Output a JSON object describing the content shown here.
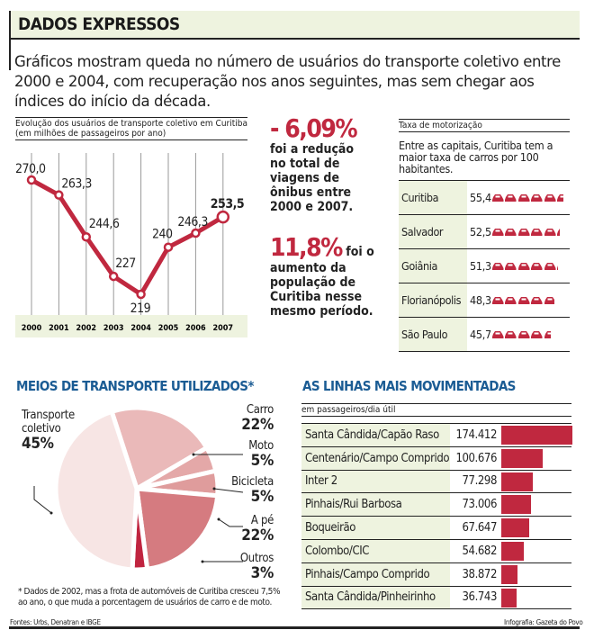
{
  "header": {
    "title": "DADOS EXPRESSOS"
  },
  "intro": "Gráficos mostram queda no número de usuários do transporte coletivo entre 2000 e 2004, com recuperação nos anos seguintes, mas sem chegar aos índices do início da década.",
  "stats": [
    {
      "value": "- 6,09%",
      "text": "foi a redução no total de viagens de ônibus entre 2000 e 2007."
    },
    {
      "value": "11,8%",
      "text": "foi o aumento da população de Curitiba nesse mesmo período."
    }
  ],
  "motorizacao": {
    "title": "Taxa de motorização",
    "desc": "Entre as capitais, Curitiba tem a maior taxa de carros por 100 habitantes.",
    "car_color": "#c0283f",
    "rows": [
      {
        "city": "Curitiba",
        "value": "55,4",
        "num": 55.4
      },
      {
        "city": "Salvador",
        "value": "52,5",
        "num": 52.5
      },
      {
        "city": "Goiânia",
        "value": "51,3",
        "num": 51.3
      },
      {
        "city": "Florianópolis",
        "value": "48,3",
        "num": 48.3
      },
      {
        "city": "São Paulo",
        "value": "45,7",
        "num": 45.7
      }
    ]
  },
  "chart_data": [
    {
      "type": "line",
      "title": "Evolução dos usuários de transporte coletivo em Curitiba (em milhões de passageiros por ano)",
      "categories": [
        "2000",
        "2001",
        "2002",
        "2003",
        "2004",
        "2005",
        "2006",
        "2007"
      ],
      "values": [
        270.0,
        263.3,
        244.6,
        227,
        219,
        240,
        246.3,
        253.5
      ],
      "labels": [
        "270,0",
        "263,3",
        "244,6",
        "227",
        "219",
        "240",
        "246,3",
        "253,5"
      ],
      "color": "#c0283f",
      "grid": true
    },
    {
      "type": "pie",
      "title": "MEIOS DE TRANSPORTE UTILIZADOS*",
      "slices": [
        {
          "name": "Carro",
          "label": "22%",
          "value": 22,
          "color": "#eab9b9"
        },
        {
          "name": "Moto",
          "label": "5%",
          "value": 5,
          "color": "#e4a8a8"
        },
        {
          "name": "Bicicleta",
          "label": "5%",
          "value": 5,
          "color": "#df9c9c"
        },
        {
          "name": "A pé",
          "label": "22%",
          "value": 22,
          "color": "#d57b80"
        },
        {
          "name": "Outros",
          "label": "3%",
          "value": 3,
          "color": "#c0243f"
        },
        {
          "name": "Transporte coletivo",
          "label": "45%",
          "value": 45,
          "color": "#f7e5e4"
        }
      ],
      "note": "* Dados de 2002, mas a frota de automóveis de Curitiba cresceu 7,5% ao ano, o que muda a porcentagem de usuários de carro e de moto."
    },
    {
      "type": "bar",
      "title": "AS LINHAS MAIS MOVIMENTADAS",
      "subtitle": "em passageiros/dia útil",
      "categories": [
        "Santa Cândida/Capão Raso",
        "Centenário/Campo Comprido",
        "Inter 2",
        "Pinhais/Rui Barbosa",
        "Boqueirão",
        "Colombo/CIC",
        "Pinhais/Campo Comprido",
        "Santa Cândida/Pinheirinho"
      ],
      "values": [
        174412,
        100676,
        77298,
        73006,
        67647,
        54682,
        38872,
        36743
      ],
      "labels": [
        "174.412",
        "100.676",
        "77.298",
        "73.006",
        "67.647",
        "54.682",
        "38.872",
        "36.743"
      ],
      "color": "#c0283f"
    }
  ],
  "footer": {
    "sources": "Fontes: Urbs, Denatran e IBGE",
    "credit": "Infografia: Gazeta do Povo"
  }
}
